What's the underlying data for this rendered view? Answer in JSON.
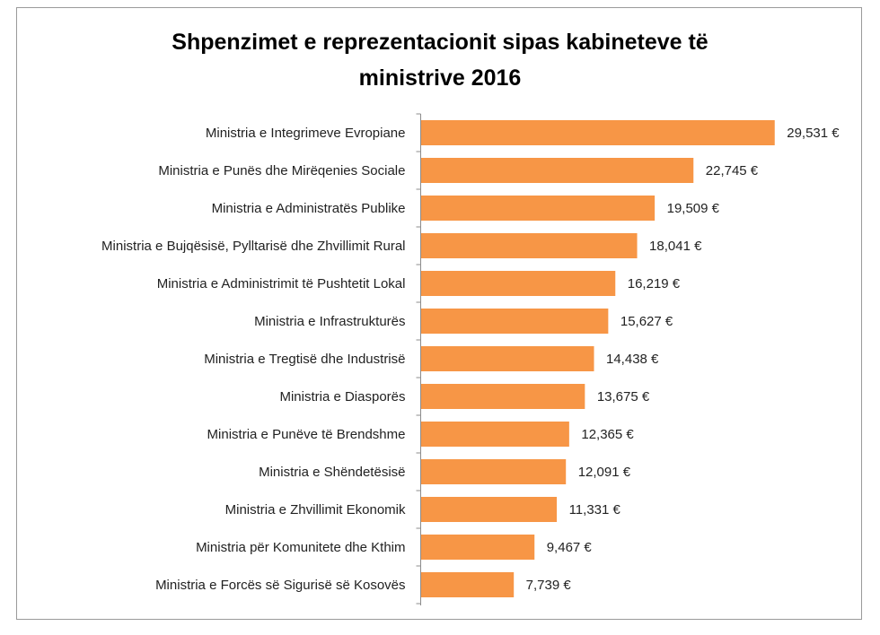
{
  "chart_data": {
    "type": "bar",
    "orientation": "horizontal",
    "title_lines": [
      "Shpenzimet e reprezentacionit sipas kabineteve të",
      "ministrive 2016"
    ],
    "categories": [
      "Ministria e Integrimeve Evropiane",
      "Ministria e Punës dhe Mirëqenies Sociale",
      "Ministria e Administratës Publike",
      "Ministria e Bujqësisë, Pylltarisë dhe Zhvillimit Rural",
      "Ministria e Administrimit të Pushtetit Lokal",
      "Ministria e Infrastrukturës",
      "Ministria e Tregtisë dhe Industrisë",
      "Ministria e Diasporës",
      "Ministria e Punëve të Brendshme",
      "Ministria e Shëndetësisë",
      "Ministria e Zhvillimit Ekonomik",
      "Ministria për Komunitete dhe Kthim",
      "Ministria e Forcës së Sigurisë së Kosovës"
    ],
    "values": [
      29531,
      22745,
      19509,
      18041,
      16219,
      15627,
      14438,
      13675,
      12365,
      12091,
      11331,
      9467,
      7739
    ],
    "value_labels": [
      "29,531 €",
      "22,745 €",
      "19,509 €",
      "18,041 €",
      "16,219 €",
      "15,627 €",
      "14,438 €",
      "13,675 €",
      "12,365 €",
      "12,091 €",
      "11,331 €",
      "9,467 €",
      "7,739 €"
    ],
    "xlim": [
      0,
      30000
    ],
    "xlabel": "",
    "ylabel": "",
    "grid": false,
    "bar_color": "#F79646"
  }
}
